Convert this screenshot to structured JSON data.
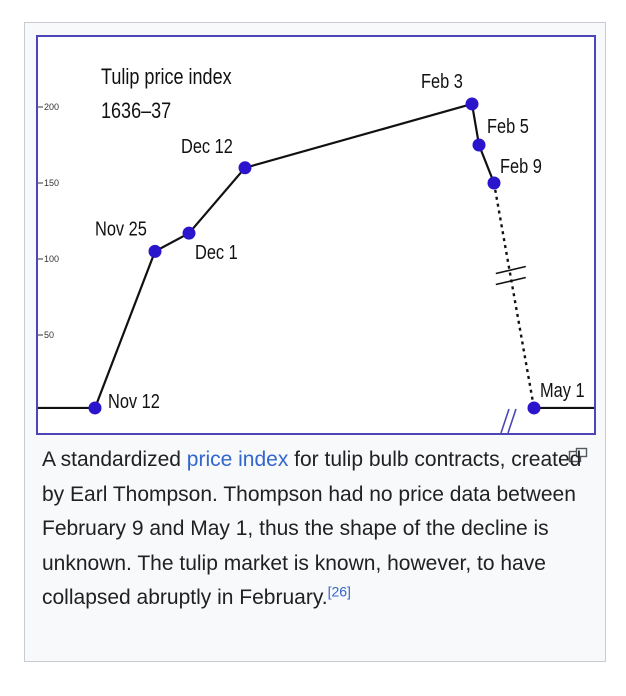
{
  "chart_data": {
    "type": "line",
    "title": [
      "Tulip price index",
      "1636–37"
    ],
    "yticks": [
      50,
      100,
      150,
      200
    ],
    "points": [
      {
        "label": "Nov 12",
        "value": 2
      },
      {
        "label": "Nov 25",
        "value": 105
      },
      {
        "label": "Dec 1",
        "value": 117
      },
      {
        "label": "Dec 12",
        "value": 160
      },
      {
        "label": "Feb 3",
        "value": 202
      },
      {
        "label": "Feb 5",
        "value": 175
      },
      {
        "label": "Feb 9",
        "value": 150
      },
      {
        "label": "May 1",
        "value": 2
      }
    ],
    "colors": {
      "line": "#111111",
      "marker": "#2a14cc",
      "frame": "#4d46b8"
    }
  },
  "caption": {
    "before_link": "A standardized ",
    "link": "price index",
    "after_link": " for tulip bulb contracts, created by Earl Thompson. Thompson had no price data between February 9 and May 1, thus the shape of the decline is unknown. The tulip market is known, however, to have collapsed abruptly in February.",
    "ref": "[26]"
  },
  "icons": {
    "enlarge": "magnify-icon"
  }
}
